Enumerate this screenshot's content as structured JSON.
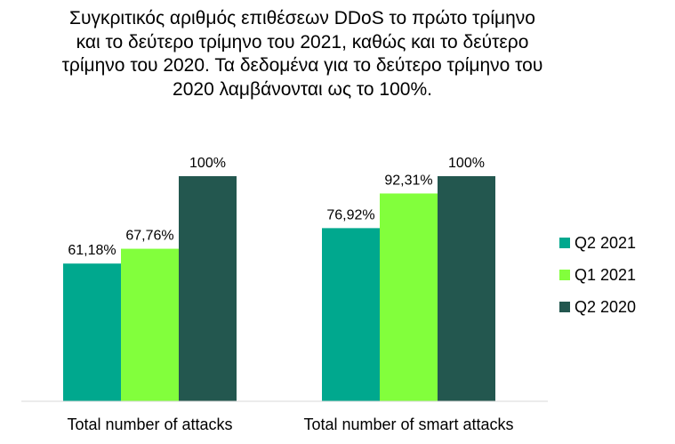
{
  "chart_data": {
    "type": "bar",
    "title": "Συγκριτικός αριθμός επιθέσεων DDoS το πρώτο τρίμηνο\nκαι το δεύτερο τρίμηνο του 2021, καθώς και το δεύτερο\nτρίμηνο του 2020. Τα δεδομένα για το δεύτερο τρίμηνο του\n2020 λαμβάνονται ως το 100%.",
    "categories": [
      "Total number of attacks",
      "Total number of smart attacks"
    ],
    "series": [
      {
        "name": "Q2 2021",
        "values": [
          61.18,
          76.92
        ],
        "labels": [
          "61,18%",
          "76,92%"
        ],
        "color": "#00A88E"
      },
      {
        "name": "Q1 2021",
        "values": [
          67.76,
          92.31
        ],
        "labels": [
          "67,76%",
          "92,31%"
        ],
        "color": "#82FF3C"
      },
      {
        "name": "Q2 2020",
        "values": [
          100,
          100
        ],
        "labels": [
          "100%",
          "100%"
        ],
        "color": "#23574F"
      }
    ],
    "ylim": [
      0,
      100
    ],
    "grid": false,
    "legend": "right"
  }
}
